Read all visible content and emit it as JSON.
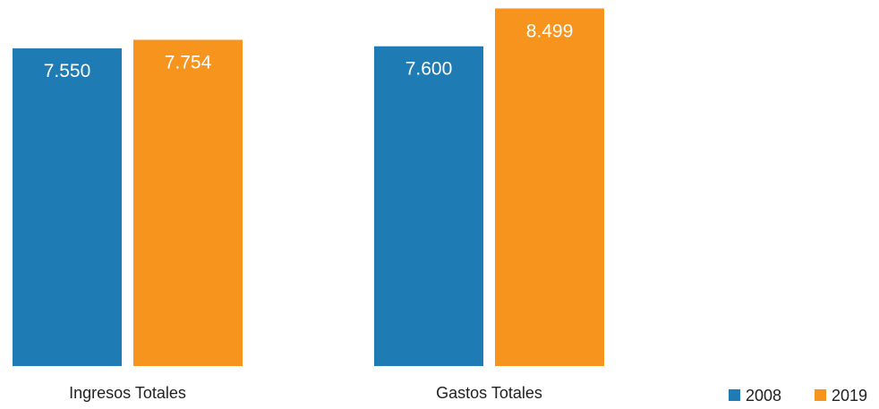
{
  "chart_data": {
    "type": "bar",
    "categories": [
      "Ingresos Totales",
      "Gastos Totales"
    ],
    "series": [
      {
        "name": "2008",
        "values": [
          7550,
          7600
        ],
        "labels": [
          "7.550",
          "7.600"
        ],
        "color": "#1f7bb4"
      },
      {
        "name": "2019",
        "values": [
          7754,
          8499
        ],
        "labels": [
          "7.754",
          "8.499"
        ],
        "color": "#f7941e"
      }
    ],
    "title": "",
    "xlabel": "",
    "ylabel": "",
    "ylim": [
      0,
      8700
    ],
    "grid": false,
    "legend_position": "bottom-right"
  }
}
